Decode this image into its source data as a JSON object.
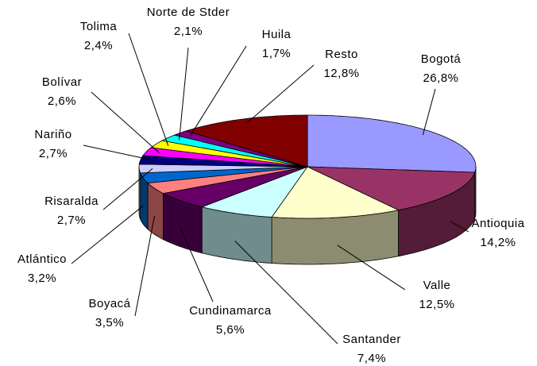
{
  "chart_data": {
    "type": "pie3d",
    "categories": [
      "Bogotá",
      "Antioquia",
      "Valle",
      "Santander",
      "Cundinamarca",
      "Boyacá",
      "Atlántico",
      "Risaralda",
      "Nariño",
      "Bolívar",
      "Tolima",
      "Norte de Stder",
      "Huila",
      "Resto"
    ],
    "values": [
      26.8,
      14.2,
      12.5,
      7.4,
      5.6,
      3.5,
      3.2,
      2.7,
      2.7,
      2.6,
      2.4,
      2.1,
      1.7,
      12.8
    ],
    "value_labels": [
      "26,8%",
      "14,2%",
      "12,5%",
      "7,4%",
      "5,6%",
      "3,5%",
      "3,2%",
      "2,7%",
      "2,7%",
      "2,6%",
      "2,4%",
      "2,1%",
      "1,7%",
      "12,8%"
    ],
    "colors": [
      "#9999ff",
      "#993366",
      "#ffffcc",
      "#ccffff",
      "#660066",
      "#ff8080",
      "#0066cc",
      "#ccccff",
      "#000080",
      "#ff00ff",
      "#ffff00",
      "#00ffff",
      "#800080",
      "#800000"
    ]
  }
}
